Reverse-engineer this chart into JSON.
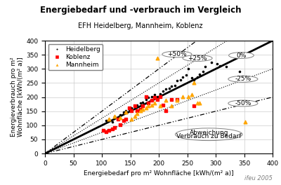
{
  "title": "Energiebedarf und -verbrauch im Vergleich",
  "subtitle": "EFH Heidelberg, Mannheim, Koblenz",
  "xlabel": "Energiebedarf pro m² Wohnfläche [kWh/(m² a)]",
  "ylabel": "Energieverbrauch pro m²\nWohnfläche [kWh/(m² a)]",
  "xlim": [
    0,
    400
  ],
  "ylim": [
    0,
    400
  ],
  "watermark": "ifeu 2005",
  "heidelberg_x": [
    108,
    112,
    118,
    122,
    128,
    132,
    138,
    142,
    148,
    152,
    158,
    162,
    168,
    172,
    178,
    182,
    188,
    192,
    198,
    202,
    208,
    212,
    218,
    222,
    228,
    232,
    238,
    242,
    248,
    252,
    258,
    262,
    268,
    272,
    278,
    282,
    292,
    302,
    308,
    318,
    342,
    348
  ],
  "heidelberg_y": [
    118,
    122,
    112,
    132,
    128,
    138,
    148,
    152,
    158,
    162,
    168,
    172,
    178,
    182,
    192,
    198,
    202,
    208,
    202,
    212,
    222,
    228,
    232,
    238,
    242,
    258,
    262,
    272,
    278,
    302,
    268,
    260,
    272,
    282,
    292,
    308,
    322,
    318,
    312,
    308,
    292,
    268
  ],
  "koblenz_x": [
    102,
    108,
    112,
    118,
    122,
    128,
    132,
    138,
    142,
    148,
    152,
    158,
    162,
    168,
    172,
    178,
    182,
    188,
    192,
    198,
    202,
    208,
    212,
    222,
    232,
    262
  ],
  "koblenz_y": [
    82,
    78,
    82,
    88,
    92,
    122,
    102,
    118,
    122,
    162,
    152,
    168,
    152,
    158,
    168,
    202,
    178,
    188,
    198,
    192,
    202,
    172,
    152,
    192,
    192,
    168
  ],
  "mannheim_x": [
    112,
    122,
    132,
    142,
    152,
    158,
    162,
    168,
    172,
    178,
    182,
    188,
    192,
    198,
    202,
    212,
    222,
    232,
    242,
    252,
    258,
    262,
    268,
    272,
    352
  ],
  "mannheim_y": [
    122,
    132,
    128,
    148,
    122,
    132,
    142,
    152,
    158,
    162,
    168,
    172,
    178,
    338,
    168,
    188,
    168,
    188,
    202,
    202,
    208,
    252,
    178,
    178,
    112
  ]
}
